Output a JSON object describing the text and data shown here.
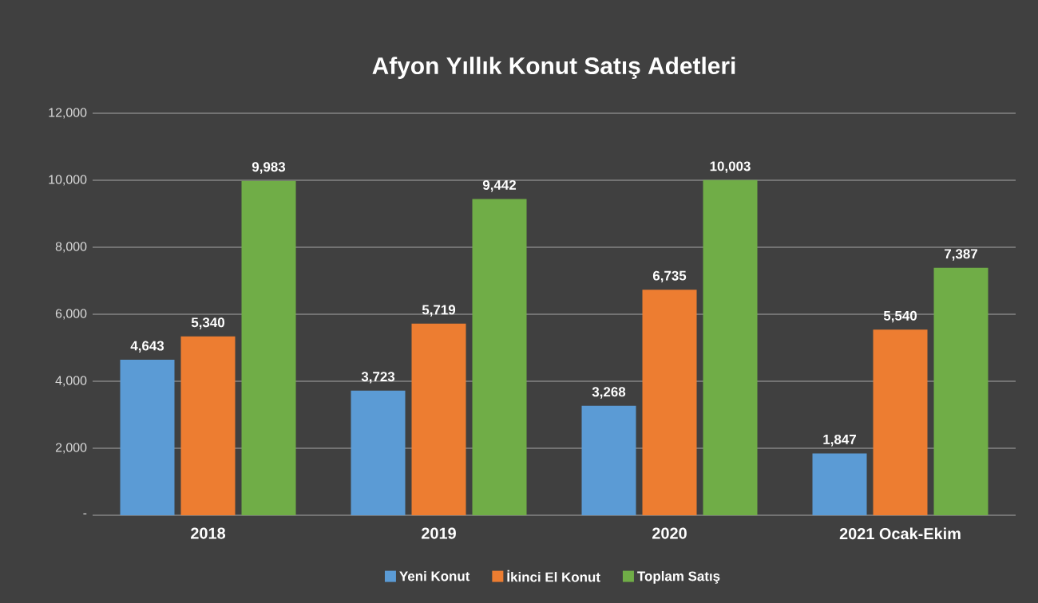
{
  "chart_data": {
    "type": "bar",
    "title": "Afyon Yıllık Konut Satış Adetleri",
    "categories": [
      "2018",
      "2019",
      "2020",
      "2021 Ocak-Ekim"
    ],
    "series": [
      {
        "name": "Yeni Konut",
        "color": "#5b9bd5",
        "values": [
          4643,
          3723,
          3268,
          1847
        ],
        "value_labels": [
          "4,643",
          "3,723",
          "3,268",
          "1,847"
        ]
      },
      {
        "name": "İkinci El Konut",
        "color": "#ed7d31",
        "values": [
          5340,
          5719,
          6735,
          5540
        ],
        "value_labels": [
          "5,340",
          "5,719",
          "6,735",
          "5,540"
        ]
      },
      {
        "name": "Toplam Satış",
        "color": "#70ad47",
        "values": [
          9983,
          9442,
          10003,
          7387
        ],
        "value_labels": [
          "9,983",
          "9,442",
          "10,003",
          "7,387"
        ]
      }
    ],
    "ylim": [
      0,
      12000
    ],
    "yticks": [
      {
        "value": 0,
        "label": "-"
      },
      {
        "value": 2000,
        "label": "2,000"
      },
      {
        "value": 4000,
        "label": "4,000"
      },
      {
        "value": 6000,
        "label": "6,000"
      },
      {
        "value": 8000,
        "label": "8,000"
      },
      {
        "value": 10000,
        "label": "10,000"
      },
      {
        "value": 12000,
        "label": "12,000"
      }
    ],
    "grid": "y",
    "legend": "bottom"
  }
}
